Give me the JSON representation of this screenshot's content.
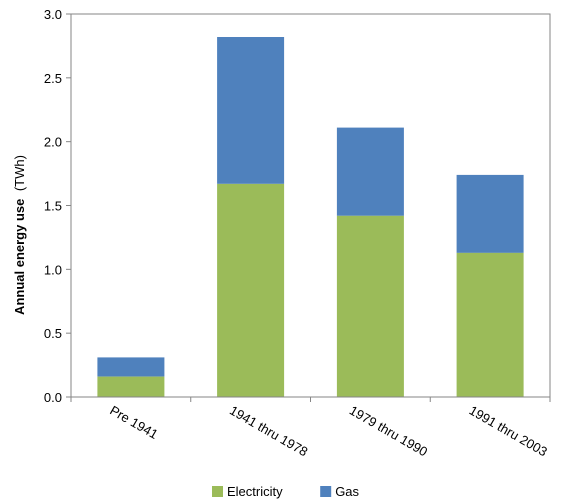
{
  "chart_data": {
    "type": "bar",
    "stacked": true,
    "categories": [
      "Pre 1941",
      "1941 thru 1978",
      "1979 thru 1990",
      "1991 thru 2003"
    ],
    "series": [
      {
        "name": "Electricity",
        "values": [
          0.16,
          1.67,
          1.42,
          1.13
        ],
        "color": "#9bbb59"
      },
      {
        "name": "Gas",
        "values": [
          0.15,
          1.15,
          0.69,
          0.61
        ],
        "color": "#4f81bd"
      }
    ],
    "ylabel_main": "Annual energy use",
    "ylabel_unit": "(TWh)",
    "ylim": [
      0,
      3.0
    ],
    "yticks": [
      "0.0",
      "0.5",
      "1.0",
      "1.5",
      "2.0",
      "2.5",
      "3.0"
    ],
    "grid": false,
    "legend_position": "bottom"
  }
}
